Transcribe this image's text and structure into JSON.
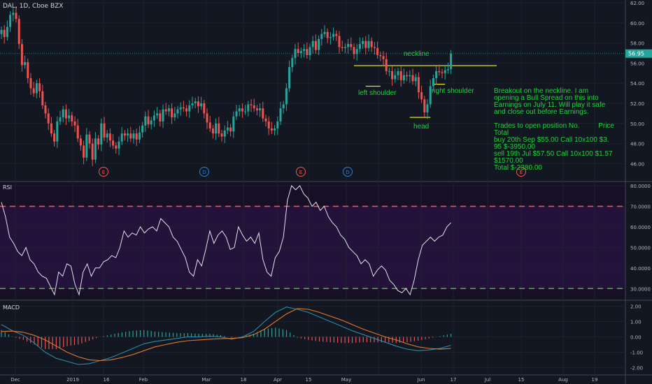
{
  "symbol": "DAL, 1D, Cboe BZX",
  "panes": {
    "rsi_label": "RSI",
    "macd_label": "MACD"
  },
  "colors": {
    "background": "#131722",
    "up": "#26a69a",
    "down": "#ef5350",
    "neckline": "#e3e31c",
    "annotation_text": "#1fd33b",
    "rsi_line": "#e0e3eb",
    "rsi_upper": "#ff5252",
    "rsi_lower": "#4caf50",
    "macd": "#2a8ca4",
    "signal": "#e07a2b",
    "last_price_badge": "#26a69a"
  },
  "chart_data": [
    {
      "type": "candlestick",
      "title": "DAL, 1D, Cboe BZX",
      "ylim": [
        44.5,
        62.0
      ],
      "yticks": [
        "62.00",
        "60.00",
        "58.00",
        "56.00",
        "54.00",
        "52.00",
        "50.00",
        "48.00",
        "46.00"
      ],
      "last_price": "56.95",
      "x_tick_labels": [
        "Dec",
        "2019",
        "16",
        "Feb",
        "Mar",
        "18",
        "Apr",
        "15",
        "May",
        "Jun",
        "17",
        "Jul",
        "15",
        "Aug",
        "19"
      ],
      "closes": [
        59.3,
        58.6,
        59.6,
        60.8,
        61.0,
        60.4,
        57.9,
        55.8,
        56.1,
        54.5,
        53.5,
        53.0,
        54.0,
        53.2,
        51.8,
        51.0,
        50.0,
        49.0,
        48.2,
        50.2,
        50.6,
        51.4,
        50.5,
        50.8,
        50.2,
        49.8,
        48.5,
        47.8,
        46.6,
        48.9,
        48.0,
        46.4,
        48.5,
        47.9,
        50.0,
        48.6,
        49.0,
        48.3,
        47.8,
        47.5,
        48.2,
        49.0,
        48.8,
        49.0,
        48.5,
        49.0,
        48.4,
        49.1,
        49.8,
        50.7,
        49.9,
        50.3,
        50.8,
        51.0,
        50.2,
        51.4,
        51.2,
        51.5,
        50.6,
        51.0,
        51.4,
        51.6,
        51.5,
        51.2,
        51.8,
        52.0,
        52.2,
        51.7,
        52.0,
        51.0,
        50.1,
        49.5,
        49.0,
        50.0,
        49.0,
        48.7,
        49.3,
        49.6,
        49.2,
        50.7,
        51.2,
        51.5,
        51.2,
        51.2,
        51.9,
        51.8,
        51.5,
        51.3,
        51.5,
        50.5,
        50.2,
        49.5,
        49.3,
        49.5,
        50.2,
        51.5,
        51.9,
        53.5,
        55.6,
        56.5,
        57.4,
        57.0,
        57.2,
        57.4,
        56.8,
        57.6,
        58.2,
        57.3,
        58.4,
        58.9,
        59.1,
        58.5,
        58.6,
        58.9,
        58.7,
        57.6,
        57.5,
        57.6,
        57.9,
        57.6,
        56.9,
        57.4,
        57.9,
        58.2,
        57.5,
        58.2,
        57.6,
        57.5,
        56.8,
        56.7,
        56.4,
        55.2,
        55.2,
        54.4,
        54.8,
        55.2,
        54.3,
        54.8,
        54.7,
        54.8,
        54.2,
        54.6,
        53.1,
        52.4,
        51.1,
        51.9,
        53.7,
        54.5,
        55.2,
        55.1,
        55.0,
        55.3,
        55.4,
        56.95
      ],
      "annotations": [
        "neckline",
        "left shoulder",
        "head",
        "right shoulder"
      ],
      "neckline_level": 55.75,
      "event_markers": [
        "E",
        "D",
        "E",
        "D",
        "E"
      ]
    },
    {
      "type": "line",
      "title": "RSI",
      "ylim": [
        25,
        80
      ],
      "yticks": [
        "80.0000",
        "70.0000",
        "60.0000",
        "50.0000",
        "40.0000",
        "30.0000"
      ],
      "bands": {
        "upper": 70,
        "lower": 30
      },
      "values": [
        72,
        65,
        55,
        52,
        48,
        46,
        50,
        44,
        42,
        38,
        36,
        35,
        31,
        27,
        38,
        36,
        42,
        41,
        32,
        27,
        38,
        42,
        36,
        40,
        40,
        43,
        44,
        46,
        45,
        50,
        58,
        55,
        57,
        56,
        60,
        57,
        59,
        60,
        58,
        64,
        62,
        60,
        55,
        53,
        49,
        45,
        38,
        36,
        44,
        41,
        49,
        58,
        52,
        56,
        58,
        55,
        49,
        50,
        60,
        56,
        53,
        55,
        52,
        57,
        44,
        38,
        36,
        45,
        48,
        55,
        73,
        80,
        78,
        80,
        76,
        74,
        70,
        72,
        68,
        70,
        65,
        62,
        60,
        56,
        54,
        50,
        48,
        46,
        42,
        44,
        42,
        36,
        39,
        41,
        39,
        34,
        32,
        29,
        28,
        30,
        27,
        34,
        44,
        51,
        53,
        55,
        53,
        55,
        56,
        60,
        62
      ]
    },
    {
      "type": "line",
      "title": "MACD",
      "ylim": [
        -2.3,
        2.3
      ],
      "yticks": [
        "2.00",
        "1.00",
        "0.00",
        "-1.00",
        "-2.00"
      ],
      "macd": [
        0.8,
        0.4,
        0.1,
        -0.4,
        -1.0,
        -1.4,
        -1.6,
        -1.8,
        -1.75,
        -1.55,
        -1.35,
        -1.05,
        -0.75,
        -0.45,
        -0.3,
        -0.2,
        -0.1,
        0.0,
        0.0,
        0.05,
        0.0,
        -0.15,
        0.0,
        0.35,
        1.0,
        1.6,
        1.95,
        1.8,
        1.6,
        1.3,
        1.0,
        0.7,
        0.4,
        0.15,
        -0.1,
        -0.35,
        -0.6,
        -0.8,
        -0.9,
        -0.85,
        -0.75,
        -0.55
      ],
      "signal": [
        0.35,
        0.38,
        0.3,
        0.1,
        -0.2,
        -0.6,
        -1.0,
        -1.3,
        -1.5,
        -1.55,
        -1.5,
        -1.35,
        -1.15,
        -0.9,
        -0.65,
        -0.5,
        -0.35,
        -0.25,
        -0.2,
        -0.15,
        -0.12,
        -0.1,
        -0.05,
        0.15,
        0.5,
        1.0,
        1.5,
        1.85,
        1.8,
        1.6,
        1.35,
        1.1,
        0.8,
        0.5,
        0.25,
        0.0,
        -0.2,
        -0.45,
        -0.65,
        -0.75,
        -0.8,
        -0.75
      ]
    }
  ],
  "labels": {
    "neckline": "neckline",
    "left_shoulder": "left shoulder",
    "head": "head",
    "right_shoulder": "right shoulder"
  },
  "note": {
    "body": "Breakout on the neckline. I am opening a Bull Spread on this into Earnings on July 11. Will play it safe and close out before Earnings.",
    "trades_left": "Trades to open position No.",
    "trades_right": "Price",
    "trades_total": "Total",
    "buy": "buy 20th Sep $55.00 Call 10x100 $3. 95 $-3950.00",
    "sell": "sell 19th Jul $57.50 Call 10x100 $1.57 $1570.00",
    "total": "Total $-2380.00"
  }
}
